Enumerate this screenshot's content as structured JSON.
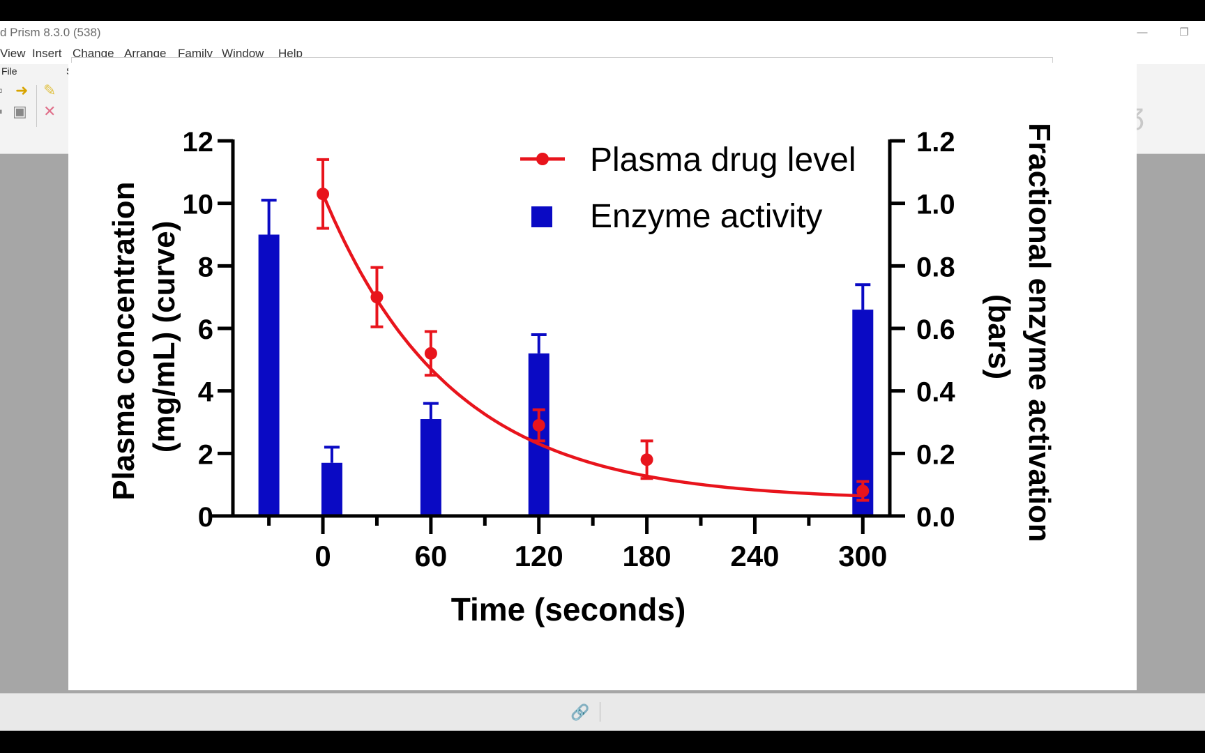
{
  "app": {
    "title": "d Prism 8.3.0 (538)",
    "window_controls": {
      "minimize": "—",
      "restore": "❐"
    }
  },
  "menu": [
    "View",
    "Insert",
    "Change",
    "Arrange",
    "Family",
    "Window",
    "Help"
  ],
  "toolbar": {
    "file_label": "File",
    "section2_label": "S"
  },
  "colors": {
    "curve": "#e8141c",
    "bars": "#0a0ac4",
    "axis": "#000000"
  },
  "chart_data": {
    "type": "bar+line",
    "xlabel": "Time (seconds)",
    "ylabel_left": [
      "Plasma concentration",
      "(mg/mL) (curve)"
    ],
    "ylabel_right": [
      "Fractional enzyme activation",
      "(bars)"
    ],
    "x_ticks": [
      0,
      60,
      120,
      180,
      240,
      300
    ],
    "xlim": [
      -50,
      315
    ],
    "ylim_left": [
      0,
      12
    ],
    "ylim_right": [
      0,
      1.2
    ],
    "y_ticks_left": [
      "0",
      "2",
      "4",
      "6",
      "8",
      "10",
      "12"
    ],
    "y_ticks_right": [
      "0.0",
      "0.2",
      "0.4",
      "0.6",
      "0.8",
      "1.0",
      "1.2"
    ],
    "legend_position": "top-right",
    "series": [
      {
        "name": "Plasma drug level",
        "kind": "line-with-points",
        "axis": "left",
        "x": [
          0,
          30,
          60,
          120,
          180,
          300
        ],
        "y": [
          10.3,
          7.0,
          5.2,
          2.9,
          1.8,
          0.8
        ],
        "err": [
          1.1,
          0.95,
          0.7,
          0.5,
          0.6,
          0.3
        ],
        "fit_curve": {
          "type": "exponential-decay",
          "y0": 10.3,
          "plateau": 0.5,
          "k": 0.0141
        }
      },
      {
        "name": "Enzyme activity",
        "kind": "bar",
        "axis": "right",
        "x": [
          -30,
          5,
          60,
          120,
          300
        ],
        "y": [
          0.9,
          0.17,
          0.31,
          0.52,
          0.66
        ],
        "err": [
          0.11,
          0.05,
          0.05,
          0.06,
          0.08
        ]
      }
    ]
  }
}
